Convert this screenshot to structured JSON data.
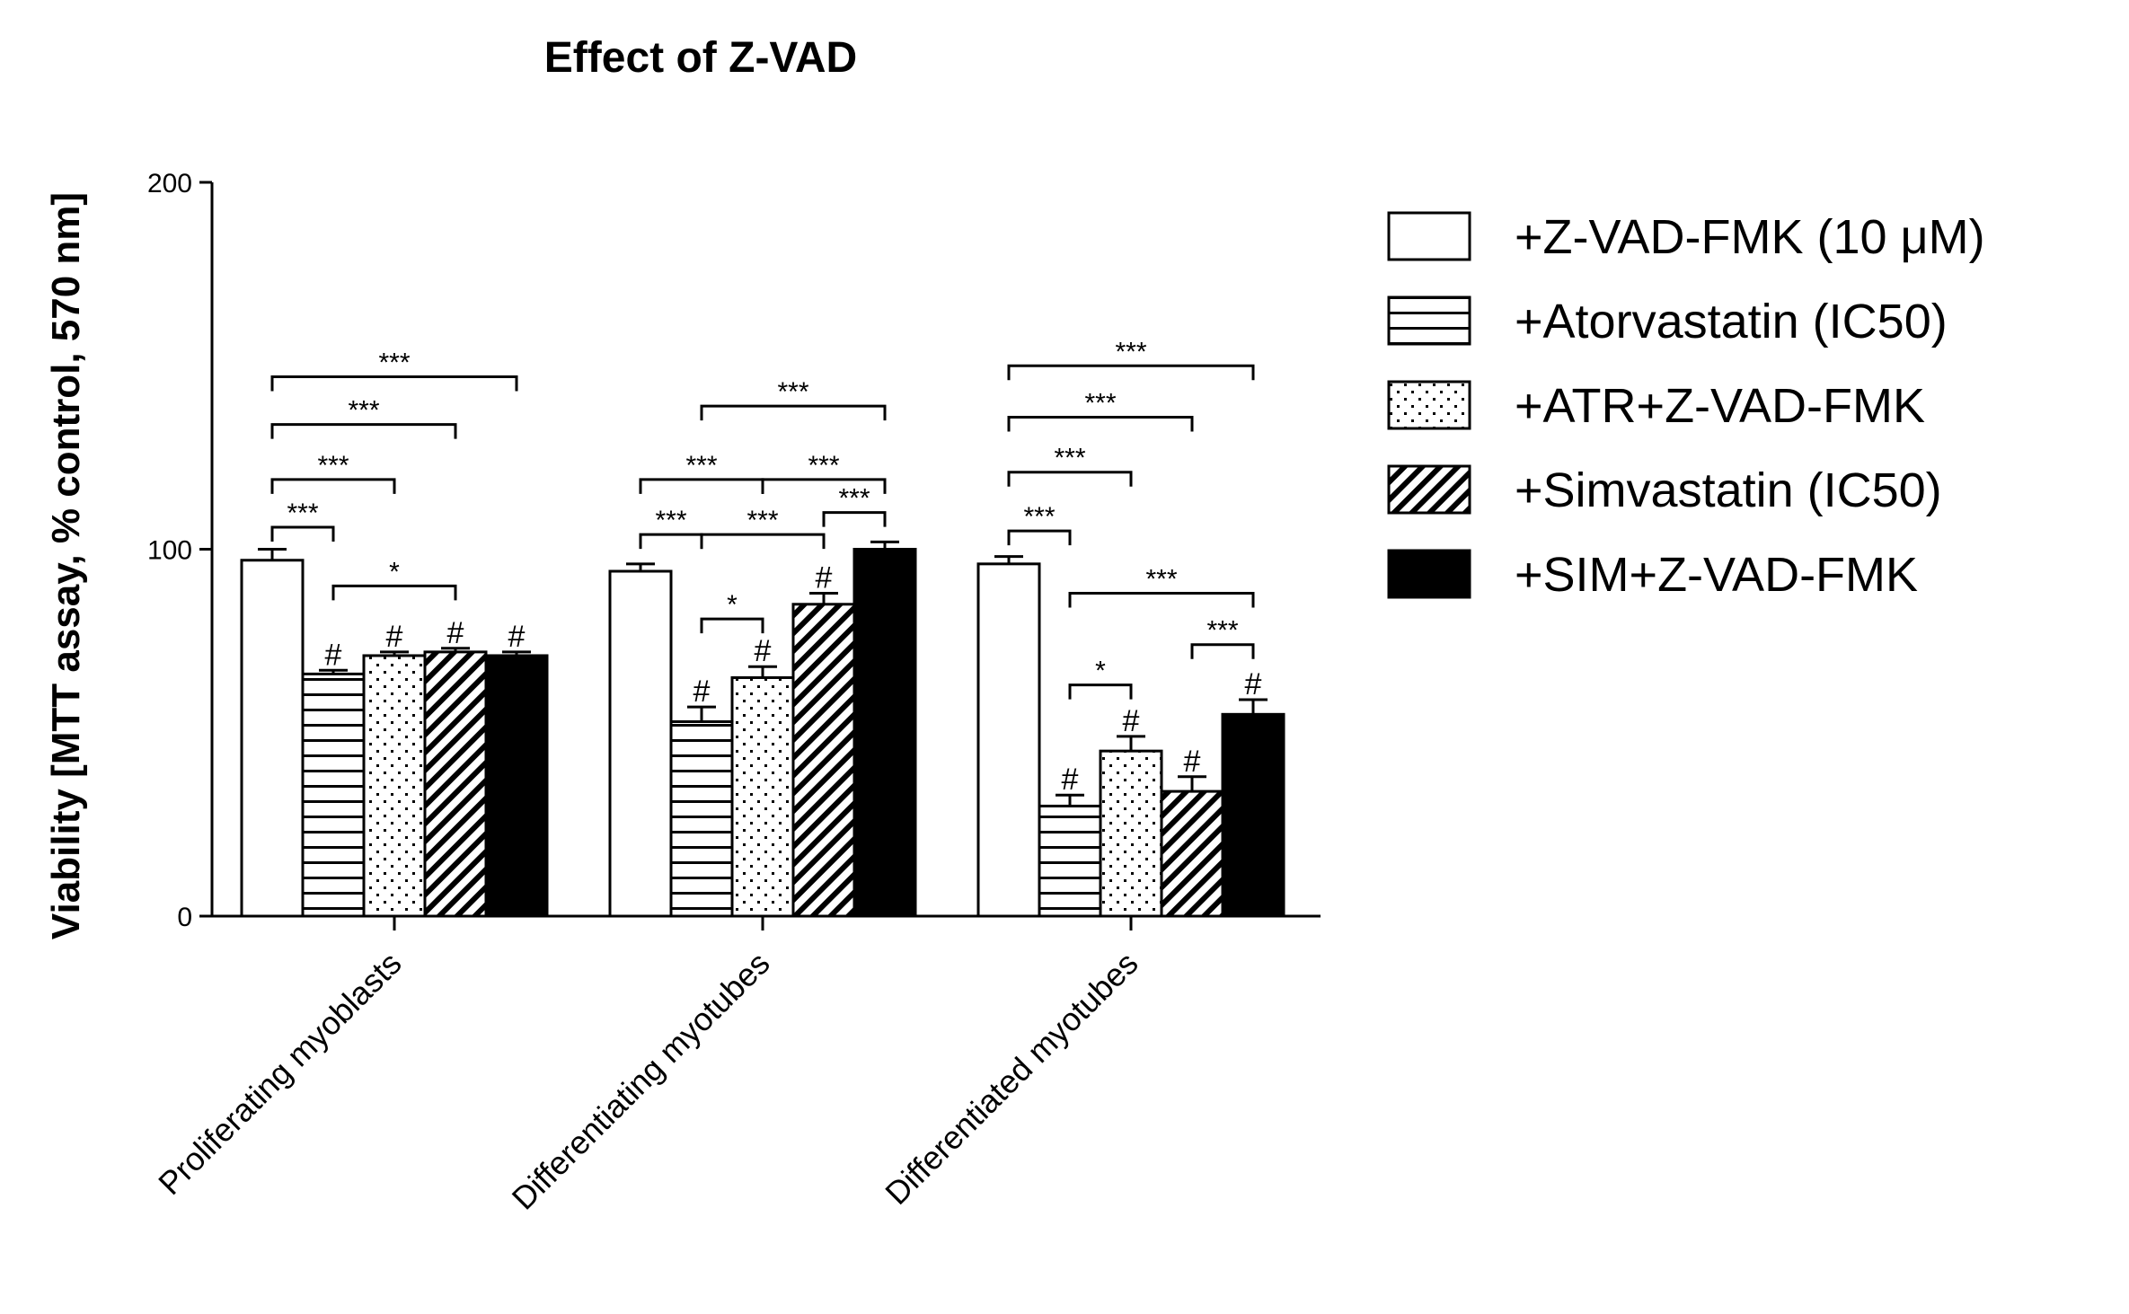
{
  "chart_data": {
    "type": "bar",
    "title": "Effect of Z-VAD",
    "ylabel": "Viability [MTT assay, % control, 570 nm]",
    "xlabel": "",
    "ylim": [
      0,
      200
    ],
    "yticks": [
      "0",
      "100",
      "200"
    ],
    "legend_position": "right",
    "categories": [
      "Proliferating myoblasts",
      "Differentiating myotubes",
      "Differentiated myotubes"
    ],
    "series": [
      {
        "name": "+Z-VAD-FMK (10 μM)",
        "pattern": "white",
        "values": [
          97,
          94,
          96
        ],
        "errors": [
          3,
          2,
          2
        ],
        "marks": [
          "",
          "",
          ""
        ]
      },
      {
        "name": "+Atorvastatin (IC50)",
        "pattern": "hlines",
        "values": [
          66,
          53,
          30
        ],
        "errors": [
          1,
          4,
          3
        ],
        "marks": [
          "#",
          "#",
          "#"
        ]
      },
      {
        "name": "+ATR+Z-VAD-FMK",
        "pattern": "dots",
        "values": [
          71,
          65,
          45
        ],
        "errors": [
          1,
          3,
          4
        ],
        "marks": [
          "#",
          "#",
          "#"
        ]
      },
      {
        "name": "+Simvastatin (IC50)",
        "pattern": "diag",
        "values": [
          72,
          85,
          34
        ],
        "errors": [
          1,
          3,
          4
        ],
        "marks": [
          "#",
          "#",
          "#"
        ]
      },
      {
        "name": "+SIM+Z-VAD-FMK",
        "pattern": "black",
        "values": [
          71,
          100,
          55
        ],
        "errors": [
          1,
          2,
          4
        ],
        "marks": [
          "#",
          "",
          "#"
        ]
      }
    ],
    "significance": [
      {
        "group": 0,
        "from": 0,
        "to": 4,
        "y": 147,
        "label": "***"
      },
      {
        "group": 0,
        "from": 0,
        "to": 3,
        "y": 134,
        "label": "***"
      },
      {
        "group": 0,
        "from": 0,
        "to": 2,
        "y": 119,
        "label": "***"
      },
      {
        "group": 0,
        "from": 0,
        "to": 1,
        "y": 106,
        "label": "***"
      },
      {
        "group": 0,
        "from": 1,
        "to": 3,
        "y": 90,
        "label": "*"
      },
      {
        "group": 1,
        "from": 1,
        "to": 4,
        "y": 139,
        "label": "***"
      },
      {
        "group": 1,
        "from": 0,
        "to": 2,
        "y": 119,
        "label": "***"
      },
      {
        "group": 1,
        "from": 2,
        "to": 4,
        "y": 119,
        "label": "***"
      },
      {
        "group": 1,
        "from": 0,
        "to": 1,
        "y": 104,
        "label": "***"
      },
      {
        "group": 1,
        "from": 1,
        "to": 3,
        "y": 104,
        "label": "***"
      },
      {
        "group": 1,
        "from": 3,
        "to": 4,
        "y": 110,
        "label": "***"
      },
      {
        "group": 1,
        "from": 1,
        "to": 2,
        "y": 81,
        "label": "*"
      },
      {
        "group": 2,
        "from": 0,
        "to": 4,
        "y": 150,
        "label": "***"
      },
      {
        "group": 2,
        "from": 0,
        "to": 3,
        "y": 136,
        "label": "***"
      },
      {
        "group": 2,
        "from": 0,
        "to": 2,
        "y": 121,
        "label": "***"
      },
      {
        "group": 2,
        "from": 0,
        "to": 1,
        "y": 105,
        "label": "***"
      },
      {
        "group": 2,
        "from": 1,
        "to": 4,
        "y": 88,
        "label": "***"
      },
      {
        "group": 2,
        "from": 3,
        "to": 4,
        "y": 74,
        "label": "***"
      },
      {
        "group": 2,
        "from": 1,
        "to": 2,
        "y": 63,
        "label": "*"
      }
    ]
  }
}
